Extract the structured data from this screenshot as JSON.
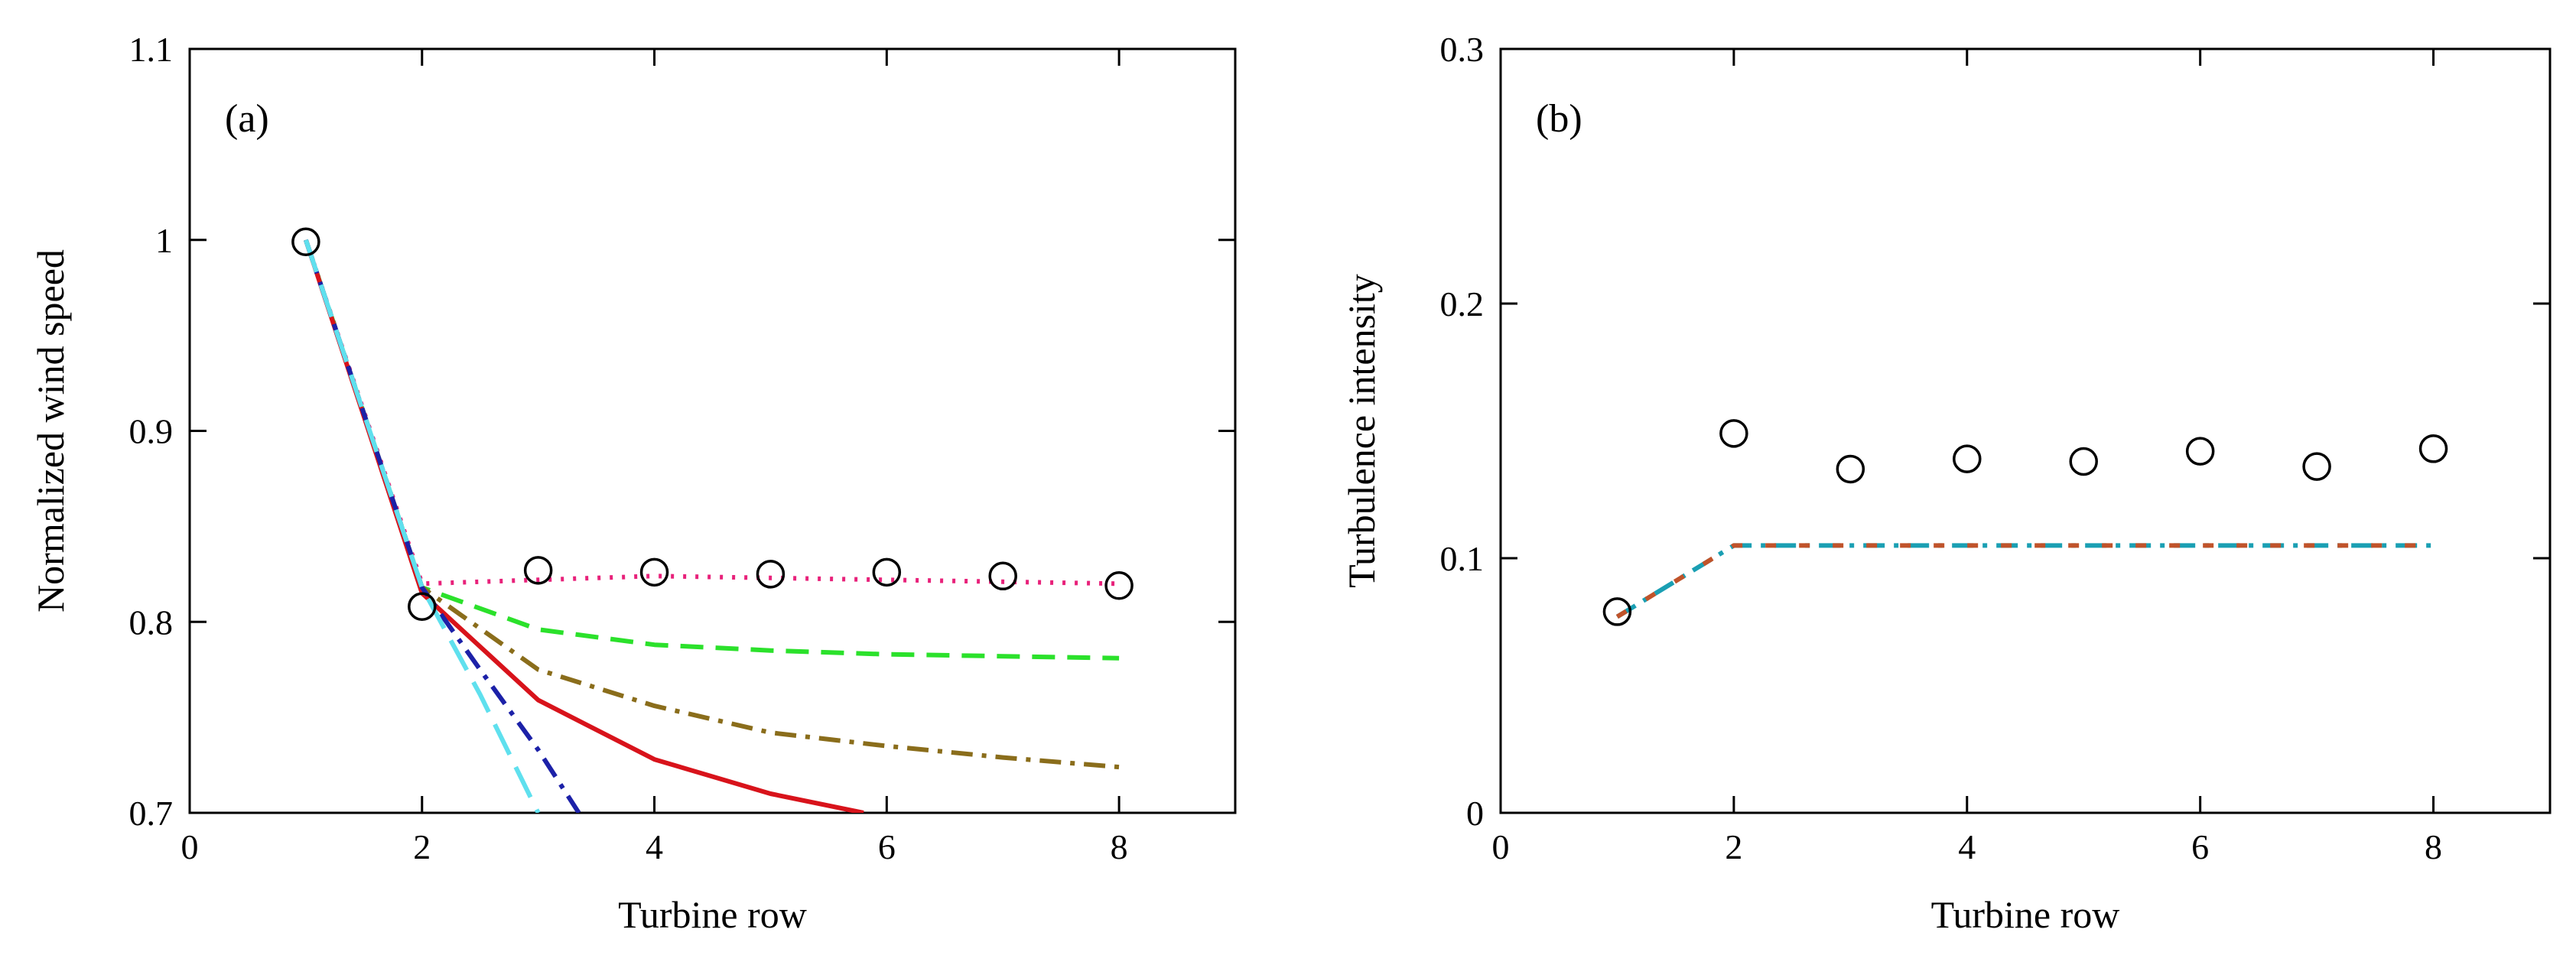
{
  "chart_data": [
    {
      "type": "line",
      "panel": "(a)",
      "xlabel": "Turbine row",
      "ylabel": "Normalized wind speed",
      "xlim": [
        0,
        9
      ],
      "ylim": [
        0.7,
        1.1
      ],
      "xticks": [
        0,
        2,
        4,
        6,
        8
      ],
      "yticks": [
        0.7,
        0.8,
        0.9,
        1,
        1.1
      ],
      "ytick_labels": [
        "0.7",
        "0.8",
        "0.9",
        "1",
        "1.1"
      ],
      "series": [
        {
          "name": "pink dotted",
          "color": "#e8217a",
          "style": "dotted",
          "x": [
            1,
            2,
            3,
            4,
            5,
            6,
            7,
            8
          ],
          "y": [
            1.0,
            0.82,
            0.822,
            0.824,
            0.823,
            0.822,
            0.821,
            0.82
          ]
        },
        {
          "name": "green dashed",
          "color": "#2be12b",
          "style": "dashed",
          "x": [
            1,
            2,
            3,
            4,
            5,
            6,
            7,
            8
          ],
          "y": [
            1.0,
            0.818,
            0.796,
            0.788,
            0.785,
            0.783,
            0.782,
            0.781
          ]
        },
        {
          "name": "olive dash-dot",
          "color": "#8a6d1b",
          "style": "dashdot",
          "x": [
            1,
            2,
            3,
            4,
            5,
            6,
            7,
            8
          ],
          "y": [
            1.0,
            0.818,
            0.775,
            0.756,
            0.742,
            0.735,
            0.729,
            0.724
          ]
        },
        {
          "name": "red solid",
          "color": "#d8131b",
          "style": "solid",
          "x": [
            1,
            2,
            3,
            4,
            5,
            5.8
          ],
          "y": [
            1.0,
            0.815,
            0.759,
            0.728,
            0.71,
            0.7
          ]
        },
        {
          "name": "blue dash-dot",
          "color": "#1c21a8",
          "style": "dashdot",
          "x": [
            1,
            2,
            2.5,
            3,
            3.35
          ],
          "y": [
            1.0,
            0.818,
            0.775,
            0.733,
            0.7
          ]
        },
        {
          "name": "cyan long dash",
          "color": "#5fe0ee",
          "style": "longdash",
          "x": [
            1,
            2,
            2.5,
            3
          ],
          "y": [
            1.0,
            0.818,
            0.762,
            0.7
          ]
        }
      ],
      "markers": {
        "name": "observed",
        "shape": "open-circle",
        "x": [
          1,
          2,
          3,
          4,
          5,
          6,
          7,
          8
        ],
        "y": [
          0.999,
          0.808,
          0.827,
          0.826,
          0.825,
          0.826,
          0.824,
          0.819
        ]
      }
    },
    {
      "type": "line",
      "panel": "(b)",
      "xlabel": "Turbine row",
      "ylabel": "Turbulence intensity",
      "xlim": [
        0,
        9
      ],
      "ylim": [
        0,
        0.3
      ],
      "xticks": [
        0,
        2,
        4,
        6,
        8
      ],
      "yticks": [
        0,
        0.1,
        0.2,
        0.3
      ],
      "ytick_labels": [
        "0",
        "0.1",
        "0.2",
        "0.3"
      ],
      "series": [
        {
          "name": "model (overlapping dashed lines)",
          "color": "#1a9fb3",
          "style": "dashdot",
          "x": [
            1,
            2,
            3,
            4,
            5,
            6,
            7,
            8
          ],
          "y": [
            0.077,
            0.105,
            0.105,
            0.105,
            0.105,
            0.105,
            0.105,
            0.105
          ]
        }
      ],
      "markers": {
        "name": "observed",
        "shape": "open-circle",
        "x": [
          1,
          2,
          3,
          4,
          5,
          6,
          7,
          8
        ],
        "y": [
          0.079,
          0.149,
          0.135,
          0.139,
          0.138,
          0.142,
          0.136,
          0.143
        ]
      }
    }
  ]
}
